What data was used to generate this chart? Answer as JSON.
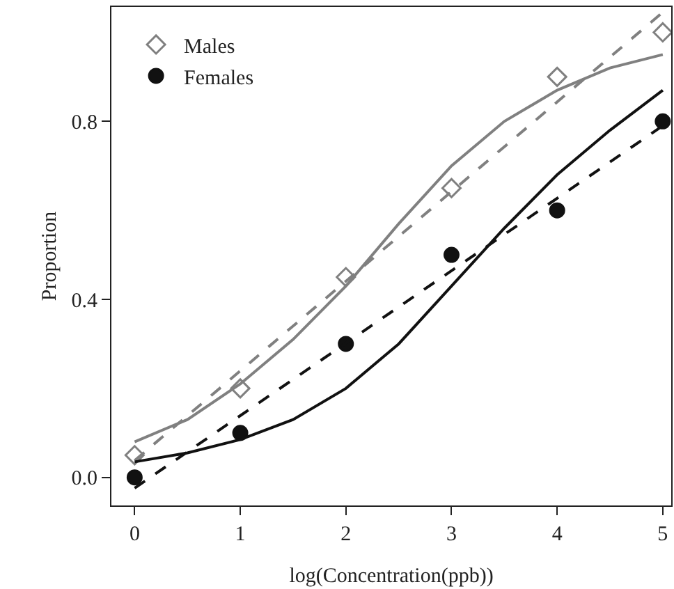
{
  "chart_data": {
    "type": "scatter",
    "xlabel": "log(Concentration(ppb))",
    "ylabel": "Proportion",
    "xlim": [
      -0.22,
      5.08
    ],
    "ylim": [
      -0.063,
      1.057
    ],
    "xticks": [
      0,
      1,
      2,
      3,
      4,
      5
    ],
    "yticks": [
      {
        "value": 0,
        "label": "0.0"
      },
      {
        "value": 0.4,
        "label": "0.4"
      },
      {
        "value": 0.8,
        "label": "0.8"
      }
    ],
    "grid": false,
    "legend": "top left",
    "series": [
      {
        "name": "Males",
        "marker": "diamond",
        "color": "#808080",
        "x": [
          0,
          1,
          2,
          3,
          4,
          5
        ],
        "values": [
          0.05,
          0.2,
          0.45,
          0.65,
          0.9,
          1.0
        ]
      },
      {
        "name": "Females",
        "marker": "circle",
        "color": "#111111",
        "x": [
          0,
          1,
          2,
          3,
          4,
          5
        ],
        "values": [
          0,
          0.1,
          0.3,
          0.5,
          0.6,
          0.8
        ]
      },
      {
        "type": "line",
        "line_style": "solid",
        "color": "#808080",
        "x": [
          0,
          0.5,
          1,
          1.5,
          2,
          2.5,
          3,
          3.5,
          4,
          4.5,
          5
        ],
        "values": [
          0.08,
          0.13,
          0.21,
          0.31,
          0.43,
          0.57,
          0.7,
          0.8,
          0.87,
          0.92,
          0.95
        ]
      },
      {
        "type": "line",
        "line_style": "dashed",
        "color": "#808080",
        "x": [
          0,
          5
        ],
        "values": [
          0.038,
          1.045
        ]
      },
      {
        "type": "line",
        "line_style": "solid",
        "color": "#111111",
        "x": [
          0,
          0.5,
          1,
          1.5,
          2,
          2.5,
          3,
          3.5,
          4,
          4.5,
          5
        ],
        "values": [
          0.035,
          0.055,
          0.085,
          0.13,
          0.2,
          0.3,
          0.43,
          0.56,
          0.68,
          0.78,
          0.87
        ]
      },
      {
        "type": "line",
        "line_style": "dashed",
        "color": "#111111",
        "x": [
          0,
          5
        ],
        "values": [
          -0.024,
          0.79
        ]
      }
    ]
  }
}
